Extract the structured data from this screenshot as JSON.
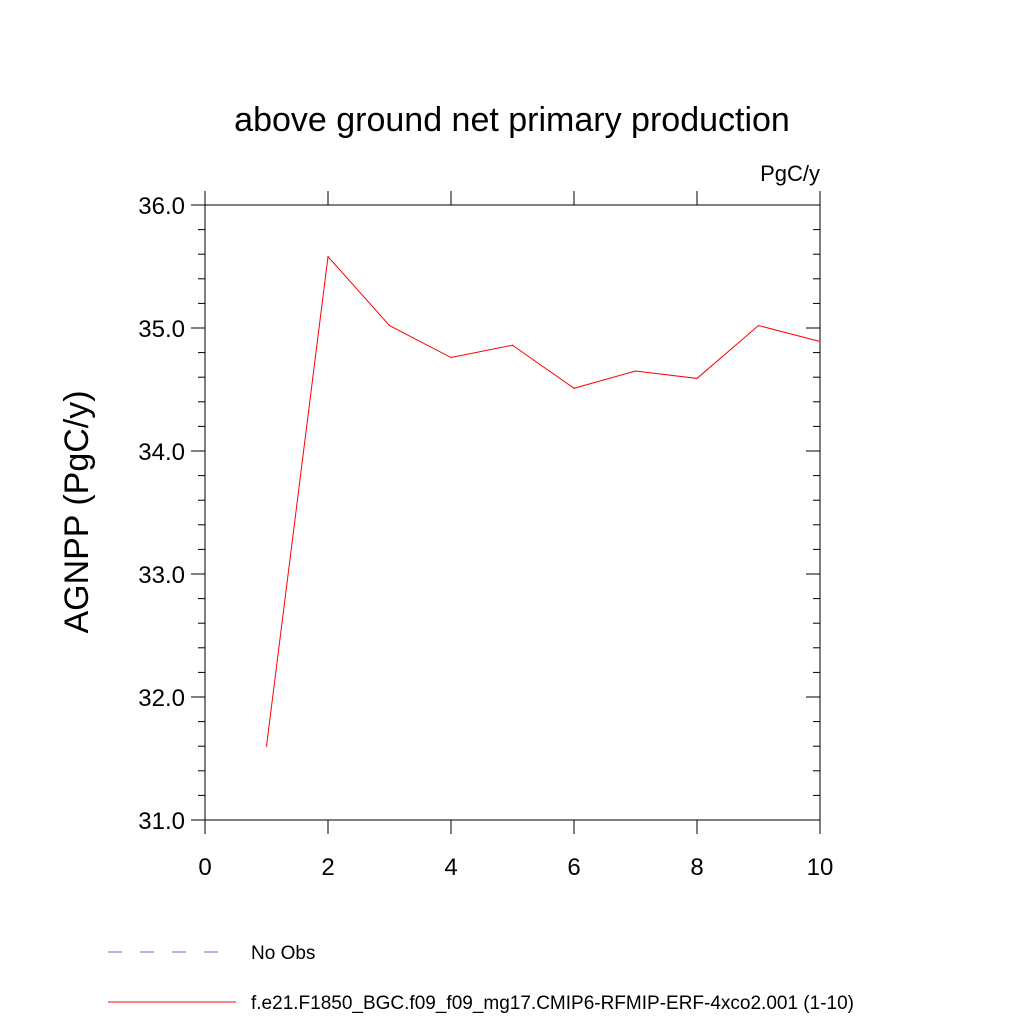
{
  "chart_data": {
    "type": "line",
    "title": "above ground net primary production",
    "units_label": "PgC/y",
    "xlabel": "",
    "ylabel": "AGNPP  (PgC/y)",
    "xlim": [
      0,
      10
    ],
    "ylim": [
      31.0,
      36.0
    ],
    "x_ticks": [
      0,
      2,
      4,
      6,
      8,
      10
    ],
    "x_tick_labels": [
      "0",
      "2",
      "4",
      "6",
      "8",
      "10"
    ],
    "y_ticks": [
      31.0,
      32.0,
      33.0,
      34.0,
      35.0,
      36.0
    ],
    "y_tick_labels": [
      "31.0",
      "32.0",
      "33.0",
      "34.0",
      "35.0",
      "36.0"
    ],
    "grid": false,
    "legend_position": "bottom",
    "series": [
      {
        "name": "f.e21.F1850_BGC.f09_f09_mg17.CMIP6-RFMIP-ERF-4xco2.001 (1-10)",
        "color": "#ff0000",
        "style": "solid",
        "x": [
          1,
          2,
          3,
          4,
          5,
          6,
          7,
          8,
          9,
          10
        ],
        "values": [
          31.6,
          35.58,
          35.02,
          34.76,
          34.86,
          34.51,
          34.65,
          34.59,
          35.02,
          34.89
        ]
      }
    ],
    "legend": [
      {
        "label": "No Obs",
        "color": "#6a6ac8",
        "style": "dashed"
      },
      {
        "label": "f.e21.F1850_BGC.f09_f09_mg17.CMIP6-RFMIP-ERF-4xco2.001 (1-10)",
        "color": "#ff0000",
        "style": "solid"
      }
    ]
  }
}
